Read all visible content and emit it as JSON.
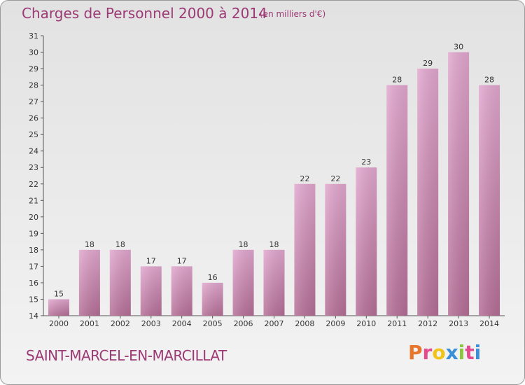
{
  "header": {
    "title": "Charges de Personnel 2000 à 2014",
    "units": "(en milliers d'€)"
  },
  "footer": {
    "commune": "SAINT-MARCEL-EN-MARCILLAT",
    "logo": "Proxiti"
  },
  "colors": {
    "bar_top": "#e2a8cf",
    "bar_bottom": "#b56f97",
    "title": "#9b3a74",
    "logo_letters": [
      "#e8762c",
      "#e34b8e",
      "#f0c419",
      "#3b8fd9",
      "#8cc63f",
      "#e34b8e",
      "#3b8fd9"
    ]
  },
  "chart_data": {
    "type": "bar",
    "categories": [
      "2000",
      "2001",
      "2002",
      "2003",
      "2004",
      "2005",
      "2006",
      "2007",
      "2008",
      "2009",
      "2010",
      "2011",
      "2012",
      "2013",
      "2014"
    ],
    "values": [
      15,
      18,
      18,
      17,
      17,
      16,
      18,
      18,
      22,
      22,
      23,
      28,
      29,
      30,
      28
    ],
    "ylim": [
      14,
      31
    ],
    "yticks": [
      14,
      15,
      16,
      17,
      18,
      19,
      20,
      21,
      22,
      23,
      24,
      25,
      26,
      27,
      28,
      29,
      30,
      31
    ],
    "grid": false,
    "data_labels": true
  }
}
